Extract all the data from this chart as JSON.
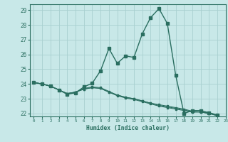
{
  "xlabel": "Humidex (Indice chaleur)",
  "xlim": [
    -0.5,
    23
  ],
  "ylim": [
    21.8,
    29.4
  ],
  "yticks": [
    22,
    23,
    24,
    25,
    26,
    27,
    28,
    29
  ],
  "xticks": [
    0,
    1,
    2,
    3,
    4,
    5,
    6,
    7,
    8,
    9,
    10,
    11,
    12,
    13,
    14,
    15,
    16,
    17,
    18,
    19,
    20,
    21,
    22,
    23
  ],
  "background_color": "#c8e8e8",
  "grid_color": "#a8d0d0",
  "line_color": "#2a6e60",
  "lines": [
    {
      "x": [
        0,
        1,
        2,
        3,
        4,
        5,
        6,
        7,
        8,
        9,
        10,
        11,
        12,
        13,
        14,
        15,
        16,
        17,
        18,
        19,
        20,
        21,
        22
      ],
      "y": [
        24.1,
        24.0,
        23.85,
        23.6,
        23.3,
        23.4,
        23.8,
        24.05,
        24.9,
        26.4,
        25.4,
        25.9,
        25.8,
        27.4,
        28.5,
        29.1,
        28.1,
        24.6,
        22.0,
        22.2,
        22.2,
        22.05,
        21.9
      ]
    },
    {
      "x": [
        0,
        1,
        2,
        3,
        4,
        5,
        6,
        7,
        8,
        9,
        10,
        11,
        12,
        13,
        14,
        15,
        16,
        17,
        18,
        19,
        20,
        21,
        22
      ],
      "y": [
        24.1,
        24.0,
        23.85,
        23.6,
        23.35,
        23.45,
        23.65,
        23.75,
        23.7,
        23.45,
        23.25,
        23.1,
        23.0,
        22.85,
        22.7,
        22.6,
        22.5,
        22.4,
        22.3,
        22.15,
        22.1,
        22.05,
        21.9
      ]
    },
    {
      "x": [
        0,
        1,
        2,
        3,
        4,
        5,
        6,
        7,
        8,
        9,
        10,
        11,
        12,
        13,
        14,
        15,
        16,
        17,
        18,
        19,
        20,
        21,
        22
      ],
      "y": [
        24.1,
        24.0,
        23.85,
        23.6,
        23.35,
        23.45,
        23.65,
        23.75,
        23.7,
        23.45,
        23.2,
        23.05,
        22.95,
        22.8,
        22.65,
        22.5,
        22.4,
        22.3,
        22.2,
        22.1,
        22.1,
        22.0,
        21.85
      ]
    },
    {
      "x": [
        0,
        1,
        2,
        3,
        4,
        5,
        6,
        7,
        8,
        9,
        10,
        11,
        12,
        13,
        14,
        15,
        16,
        17,
        18,
        19,
        20,
        21,
        22
      ],
      "y": [
        24.1,
        24.0,
        23.85,
        23.6,
        23.35,
        23.45,
        23.7,
        23.8,
        23.75,
        23.5,
        23.25,
        23.1,
        23.0,
        22.85,
        22.7,
        22.55,
        22.45,
        22.35,
        22.25,
        22.1,
        22.1,
        22.0,
        21.85
      ]
    }
  ]
}
